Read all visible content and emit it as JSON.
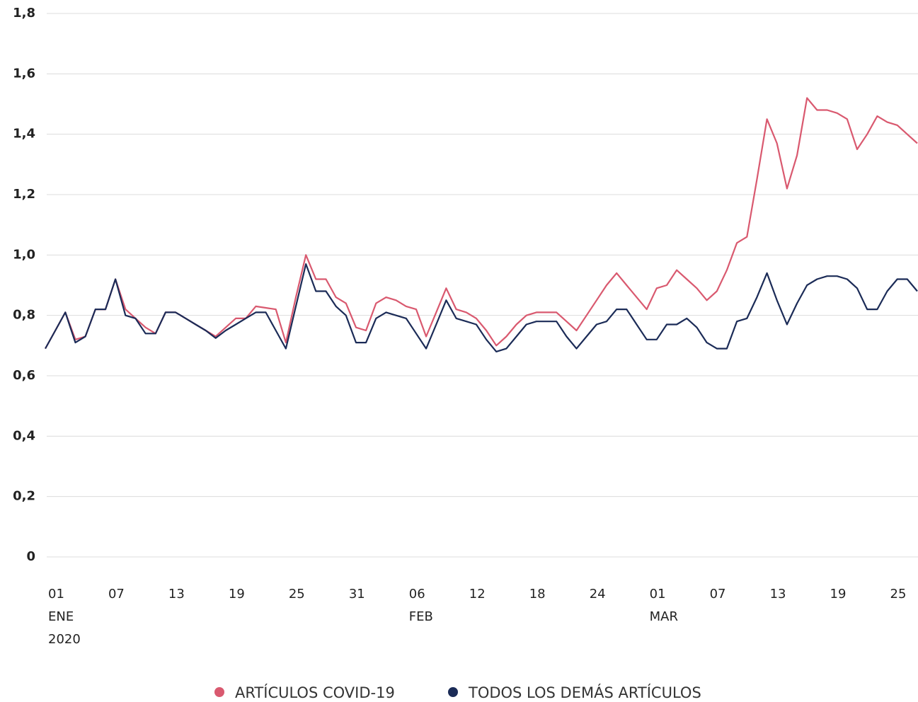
{
  "chart_data": {
    "type": "line",
    "x": [
      "2020-01-01",
      "2020-01-02",
      "2020-01-03",
      "2020-01-04",
      "2020-01-05",
      "2020-01-06",
      "2020-01-07",
      "2020-01-08",
      "2020-01-09",
      "2020-01-10",
      "2020-01-11",
      "2020-01-12",
      "2020-01-13",
      "2020-01-14",
      "2020-01-15",
      "2020-01-16",
      "2020-01-17",
      "2020-01-18",
      "2020-01-19",
      "2020-01-20",
      "2020-01-21",
      "2020-01-22",
      "2020-01-23",
      "2020-01-24",
      "2020-01-25",
      "2020-01-26",
      "2020-01-27",
      "2020-01-28",
      "2020-01-29",
      "2020-01-30",
      "2020-01-31",
      "2020-02-01",
      "2020-02-02",
      "2020-02-03",
      "2020-02-04",
      "2020-02-05",
      "2020-02-06",
      "2020-02-07",
      "2020-02-08",
      "2020-02-09",
      "2020-02-10",
      "2020-02-11",
      "2020-02-12",
      "2020-02-13",
      "2020-02-14",
      "2020-02-15",
      "2020-02-16",
      "2020-02-17",
      "2020-02-18",
      "2020-02-19",
      "2020-02-20",
      "2020-02-21",
      "2020-02-22",
      "2020-02-23",
      "2020-02-24",
      "2020-02-25",
      "2020-02-26",
      "2020-02-27",
      "2020-02-28",
      "2020-02-29",
      "2020-03-01",
      "2020-03-02",
      "2020-03-03",
      "2020-03-04",
      "2020-03-05",
      "2020-03-06",
      "2020-03-07",
      "2020-03-08",
      "2020-03-09",
      "2020-03-10",
      "2020-03-11",
      "2020-03-12",
      "2020-03-13",
      "2020-03-14",
      "2020-03-15",
      "2020-03-16",
      "2020-03-17",
      "2020-03-18",
      "2020-03-19",
      "2020-03-20",
      "2020-03-21",
      "2020-03-22",
      "2020-03-23",
      "2020-03-24",
      "2020-03-25",
      "2020-03-26",
      "2020-03-27",
      "2020-03-28"
    ],
    "series": [
      {
        "name": "ARTÍCULOS COVID-19",
        "color": "#d9596f",
        "values": [
          0.69,
          0.75,
          0.81,
          0.72,
          0.73,
          0.82,
          0.82,
          0.92,
          0.82,
          0.79,
          0.76,
          0.74,
          0.81,
          0.81,
          0.79,
          0.77,
          0.75,
          0.73,
          0.76,
          0.79,
          0.79,
          0.83,
          0.825,
          0.82,
          0.71,
          0.86,
          1.0,
          0.92,
          0.92,
          0.86,
          0.84,
          0.76,
          0.75,
          0.84,
          0.86,
          0.85,
          0.83,
          0.82,
          0.73,
          0.81,
          0.89,
          0.82,
          0.81,
          0.79,
          0.75,
          0.7,
          0.73,
          0.77,
          0.8,
          0.81,
          0.81,
          0.81,
          0.78,
          0.75,
          0.8,
          0.85,
          0.9,
          0.94,
          0.9,
          0.86,
          0.82,
          0.89,
          0.9,
          0.95,
          0.92,
          0.89,
          0.85,
          0.88,
          0.95,
          1.04,
          1.06,
          1.25,
          1.45,
          1.37,
          1.22,
          1.33,
          1.52,
          1.48,
          1.48,
          1.47,
          1.45,
          1.35,
          1.4,
          1.46,
          1.44,
          1.43,
          1.4,
          1.37
        ]
      },
      {
        "name": "TODOS LOS DEMÁS ARTÍCULOS",
        "color": "#1b2b57",
        "values": [
          0.69,
          0.75,
          0.81,
          0.71,
          0.73,
          0.82,
          0.82,
          0.92,
          0.8,
          0.79,
          0.74,
          0.74,
          0.81,
          0.81,
          0.79,
          0.77,
          0.75,
          0.725,
          0.75,
          0.77,
          0.79,
          0.81,
          0.81,
          0.75,
          0.69,
          0.83,
          0.97,
          0.88,
          0.88,
          0.83,
          0.8,
          0.71,
          0.71,
          0.79,
          0.81,
          0.8,
          0.79,
          0.74,
          0.69,
          0.77,
          0.85,
          0.79,
          0.78,
          0.77,
          0.72,
          0.68,
          0.69,
          0.73,
          0.77,
          0.78,
          0.78,
          0.78,
          0.73,
          0.69,
          0.73,
          0.77,
          0.78,
          0.82,
          0.82,
          0.77,
          0.72,
          0.72,
          0.77,
          0.77,
          0.79,
          0.76,
          0.71,
          0.69,
          0.69,
          0.78,
          0.79,
          0.86,
          0.94,
          0.85,
          0.77,
          0.84,
          0.9,
          0.92,
          0.93,
          0.93,
          0.92,
          0.89,
          0.82,
          0.82,
          0.88,
          0.92,
          0.92,
          0.88
        ]
      }
    ],
    "xlim": [
      "2020-01-01",
      "2020-03-28"
    ],
    "xticks": [
      {
        "value": "2020-01-01",
        "label": "01"
      },
      {
        "value": "2020-01-07",
        "label": "07"
      },
      {
        "value": "2020-01-13",
        "label": "13"
      },
      {
        "value": "2020-01-19",
        "label": "19"
      },
      {
        "value": "2020-01-25",
        "label": "25"
      },
      {
        "value": "2020-01-31",
        "label": "31"
      },
      {
        "value": "2020-02-06",
        "label": "06"
      },
      {
        "value": "2020-02-12",
        "label": "12"
      },
      {
        "value": "2020-02-18",
        "label": "18"
      },
      {
        "value": "2020-02-24",
        "label": "24"
      },
      {
        "value": "2020-03-01",
        "label": "01"
      },
      {
        "value": "2020-03-07",
        "label": "07"
      },
      {
        "value": "2020-03-13",
        "label": "13"
      },
      {
        "value": "2020-03-19",
        "label": "19"
      },
      {
        "value": "2020-03-25",
        "label": "25"
      }
    ],
    "month_labels": [
      {
        "value": "2020-01-01",
        "label": "ENE"
      },
      {
        "value": "2020-02-06",
        "label": "FEB"
      },
      {
        "value": "2020-03-01",
        "label": "MAR"
      }
    ],
    "year_label": {
      "value": "2020-01-01",
      "label": "2020"
    },
    "ylim": [
      0,
      1.8
    ],
    "yticks": [
      0,
      {
        "value": 0.2,
        "label": "0,2"
      },
      {
        "value": 0.4,
        "label": "0,4"
      },
      {
        "value": 0.6,
        "label": "0,6"
      },
      {
        "value": 0.8,
        "label": "0,8"
      },
      {
        "value": 1.0,
        "label": "1,0"
      },
      {
        "value": 1.2,
        "label": "1,2"
      },
      {
        "value": 1.4,
        "label": "1,4"
      },
      {
        "value": 1.6,
        "label": "1,6"
      },
      {
        "value": 1.8,
        "label": "1,8"
      }
    ],
    "grid": true,
    "legend": "bottom"
  }
}
